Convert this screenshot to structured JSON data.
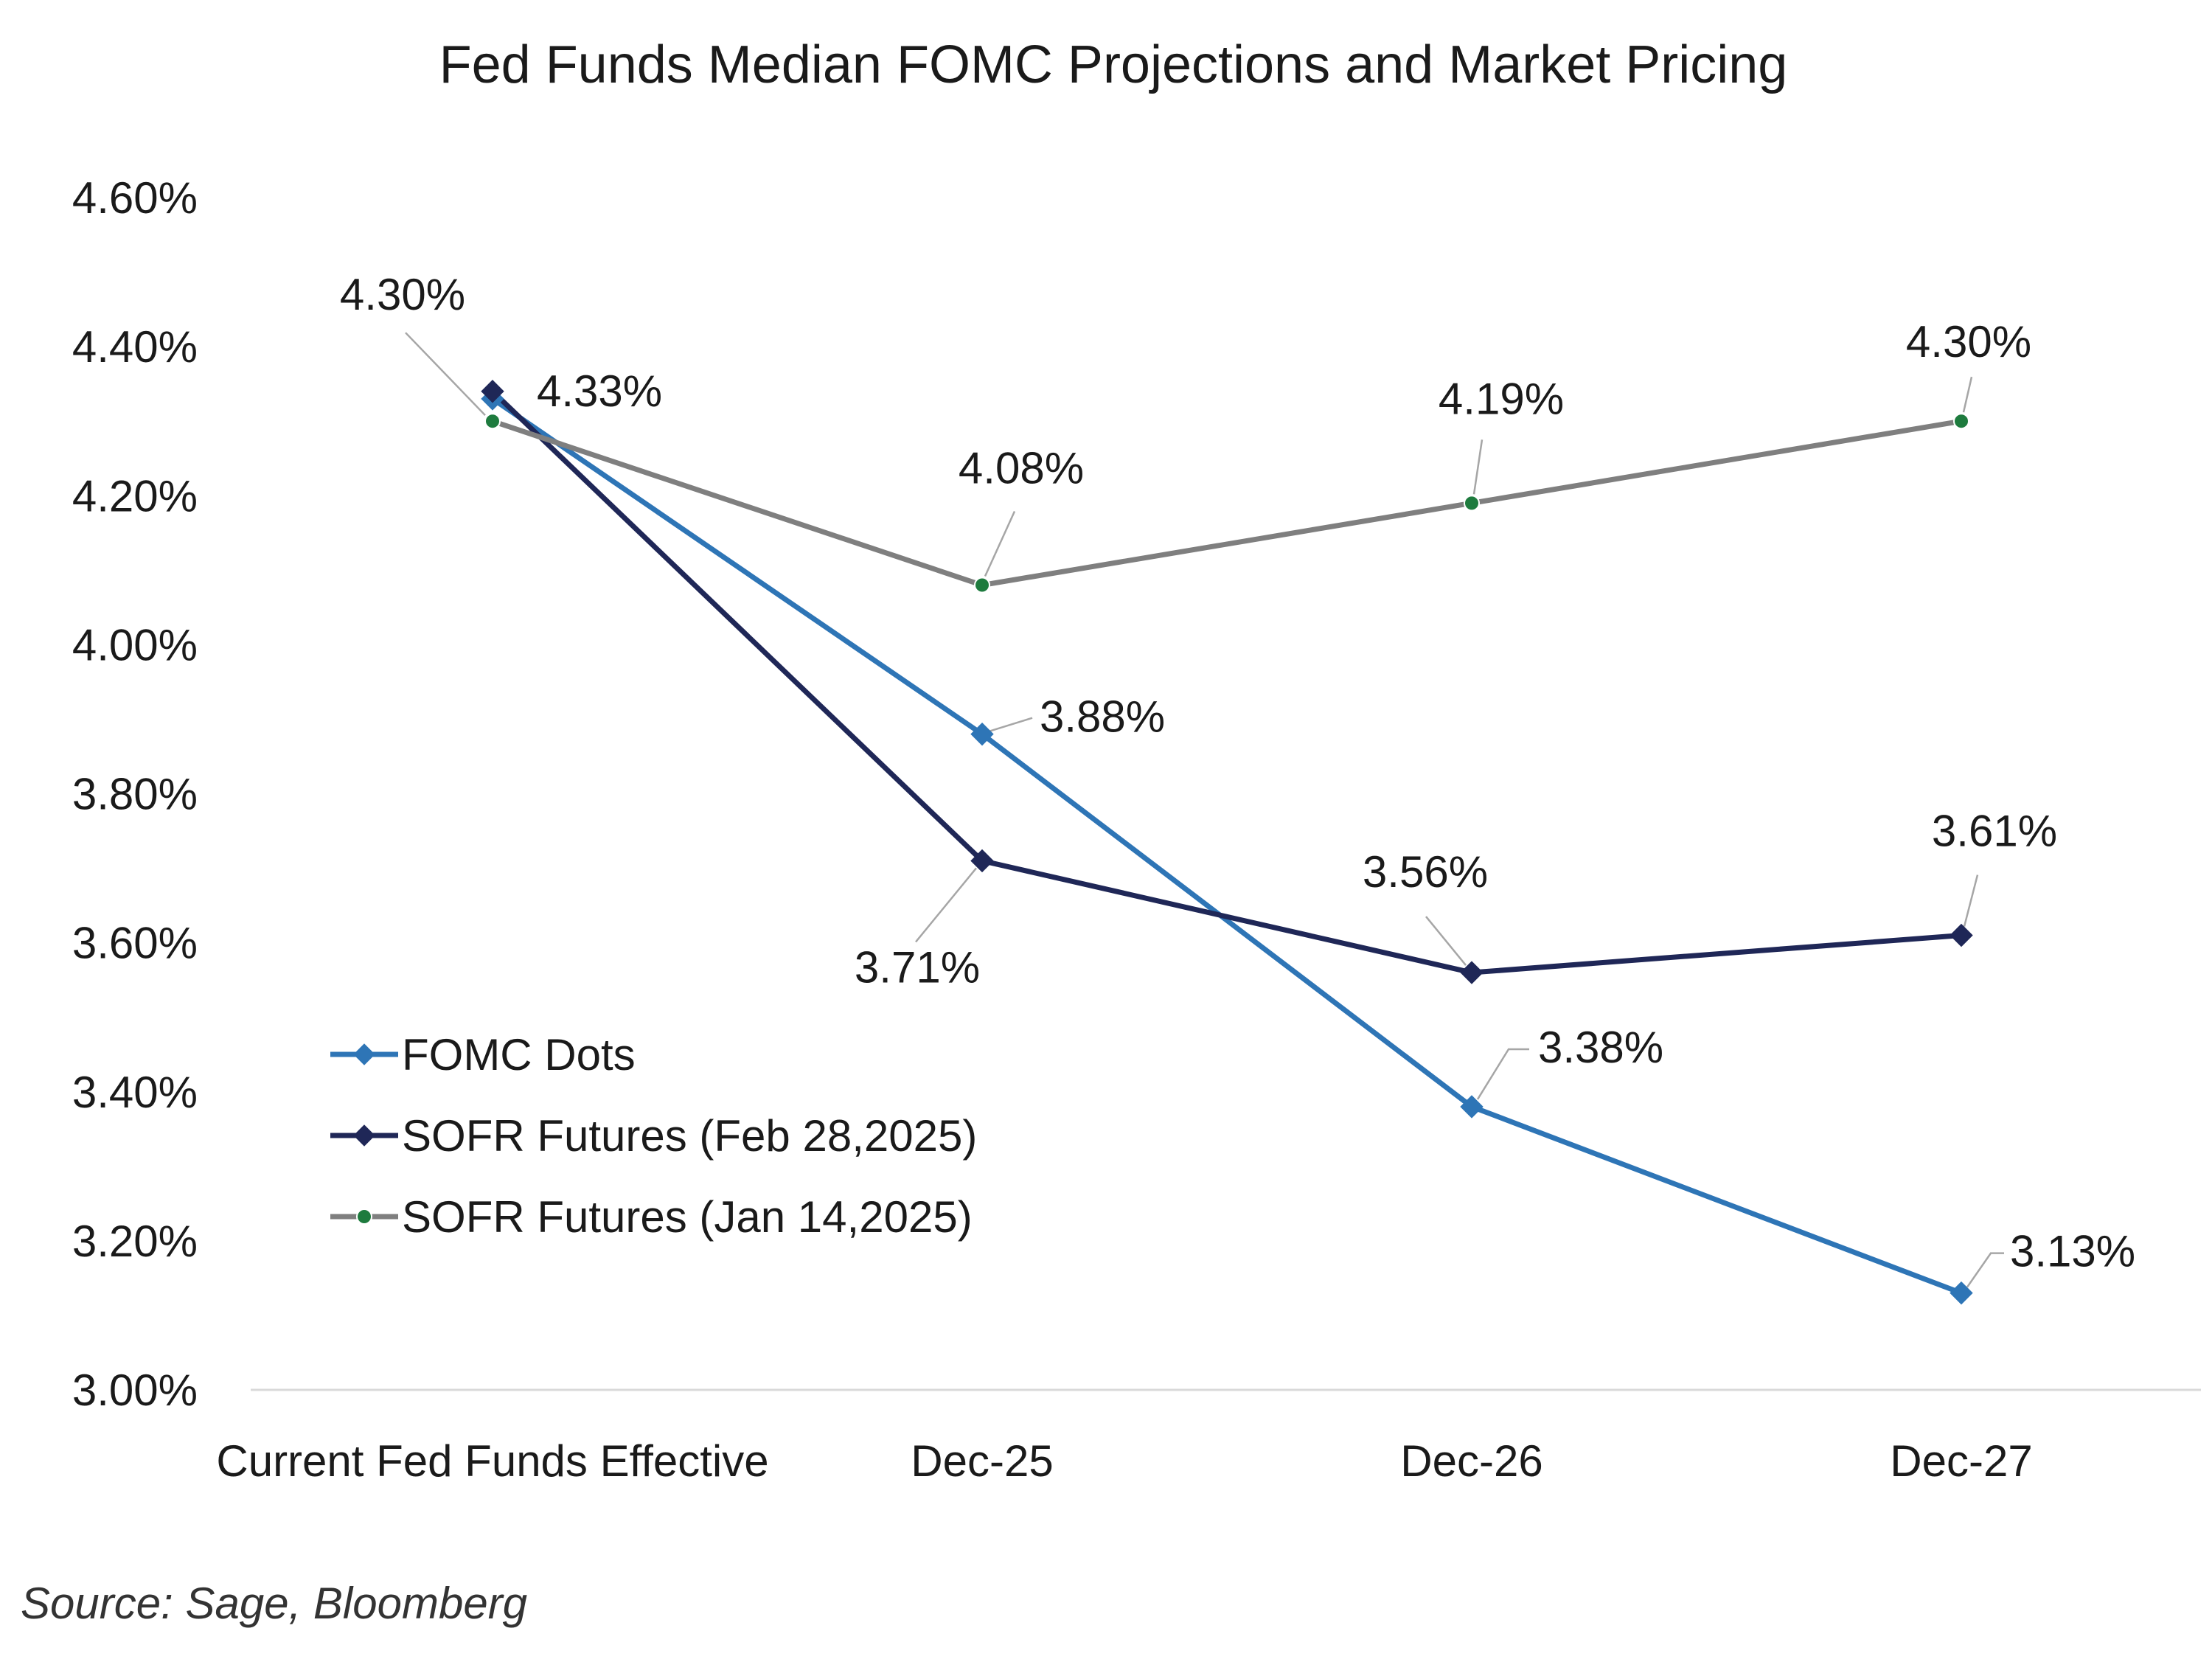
{
  "chart_data": {
    "type": "line",
    "title": "Fed Funds Median FOMC Projections and Market Pricing",
    "categories": [
      "Current Fed Funds Effective",
      "Dec-25",
      "Dec-26",
      "Dec-27"
    ],
    "ylim": [
      3.0,
      4.6
    ],
    "yticks": [
      "3.00%",
      "3.20%",
      "3.40%",
      "3.60%",
      "3.80%",
      "4.00%",
      "4.20%",
      "4.40%",
      "4.60%"
    ],
    "grid": false,
    "legend_position": "bottom-left",
    "series": [
      {
        "name": "FOMC Dots",
        "color": "#2e75b6",
        "marker": "diamond",
        "values": [
          4.33,
          3.88,
          3.38,
          3.13
        ],
        "labels": [
          "4.33%",
          "3.88%",
          "3.38%",
          "3.13%"
        ]
      },
      {
        "name": "SOFR Futures (Feb 28,2025)",
        "color": "#1f2757",
        "marker": "diamond",
        "values": [
          4.34,
          3.71,
          3.56,
          3.61
        ],
        "labels": [
          "",
          "3.71%",
          "3.56%",
          "3.61%"
        ]
      },
      {
        "name": "SOFR Futures (Jan 14,2025)",
        "color": "#7f7f7f",
        "marker_color": "#1e7b3e",
        "marker": "circle",
        "values": [
          4.3,
          4.08,
          4.19,
          4.3
        ],
        "labels": [
          "4.30%",
          "4.08%",
          "4.19%",
          "4.30%"
        ]
      }
    ],
    "source": "Source: Sage, Bloomberg"
  }
}
